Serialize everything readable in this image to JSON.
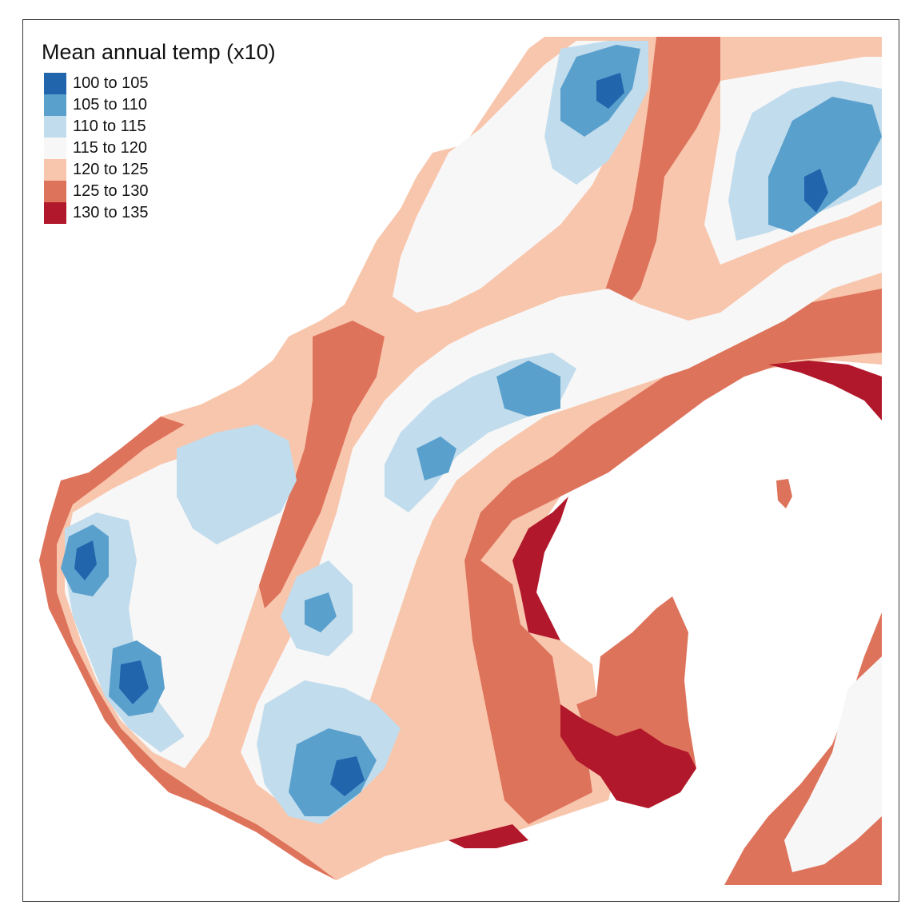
{
  "legend": {
    "title": "Mean annual temp (x10)",
    "classes": [
      {
        "label": "100 to 105",
        "color": "#2166ac"
      },
      {
        "label": "105 to 110",
        "color": "#5aa0cd"
      },
      {
        "label": "110 to 115",
        "color": "#c1dcec"
      },
      {
        "label": "115 to 120",
        "color": "#f7f7f7"
      },
      {
        "label": "120 to 125",
        "color": "#f8c6ad"
      },
      {
        "label": "125 to 130",
        "color": "#de735c"
      },
      {
        "label": "130 to 135",
        "color": "#b2182b"
      }
    ]
  },
  "map": {
    "type": "raster",
    "background": "#ffffff",
    "frame_color": "#3a3a3a"
  }
}
